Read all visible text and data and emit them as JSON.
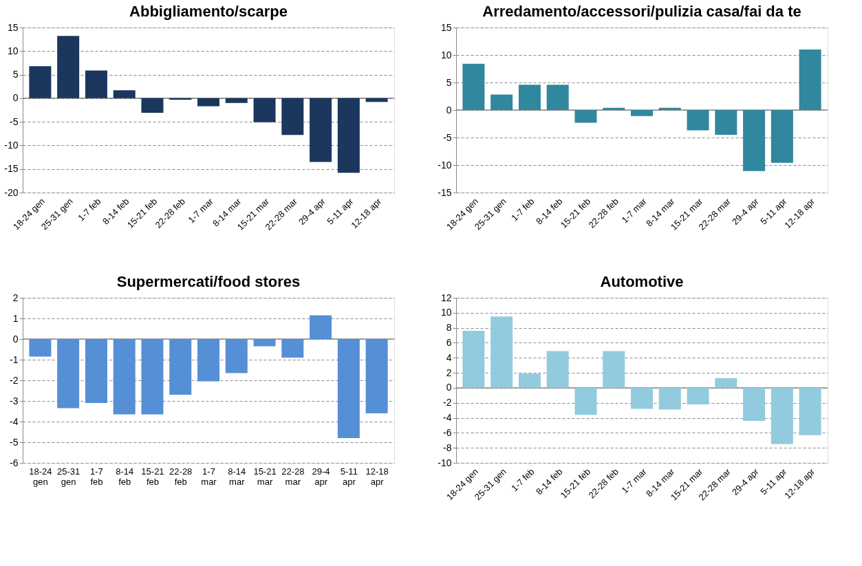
{
  "chart_data": [
    {
      "type": "bar",
      "title": "Abbigliamento/scarpe",
      "categories": [
        "18-24 gen",
        "25-31 gen",
        "1-7 feb",
        "8-14 feb",
        "15-21 feb",
        "22-28 feb",
        "1-7 mar",
        "8-14 mar",
        "15-21 mar",
        "22-28 mar",
        "29-4 apr",
        "5-11 apr",
        "12-18 apr"
      ],
      "values": [
        6.8,
        13.2,
        5.9,
        1.7,
        -3.1,
        -0.3,
        -1.7,
        -1.0,
        -5.1,
        -7.8,
        -13.5,
        -15.8,
        -0.8
      ],
      "color": "#1b375e",
      "ylim": [
        -20,
        15
      ],
      "yticks": [
        -20,
        -15,
        -10,
        -5,
        0,
        5,
        10,
        15
      ],
      "grid": "y"
    },
    {
      "type": "bar",
      "title": "Arredamento/accessori/pulizia casa/fai da te",
      "categories": [
        "18-24 gen",
        "25-31 gen",
        "1-7 feb",
        "8-14 feb",
        "15-21 feb",
        "22-28 feb",
        "1-7 mar",
        "8-14 mar",
        "15-21 mar",
        "22-28 mar",
        "29-4 apr",
        "5-11 apr",
        "12-18 apr"
      ],
      "values": [
        8.4,
        2.8,
        4.6,
        4.6,
        -2.3,
        0.4,
        -1.1,
        0.4,
        -3.7,
        -4.5,
        -11.1,
        -9.6,
        11.0
      ],
      "color": "#31879e",
      "ylim": [
        -15,
        15
      ],
      "yticks": [
        -15,
        -10,
        -5,
        0,
        5,
        10,
        15
      ],
      "grid": "y"
    },
    {
      "type": "bar",
      "title": "Supermercati/food stores",
      "categories": [
        "18-24 gen",
        "25-31 gen",
        "1-7 feb",
        "8-14 feb",
        "15-21 feb",
        "22-28 feb",
        "1-7 mar",
        "8-14 mar",
        "15-21 mar",
        "22-28 mar",
        "29-4 apr",
        "5-11 apr",
        "12-18 apr"
      ],
      "values": [
        -0.85,
        -3.35,
        -3.1,
        -3.65,
        -3.65,
        -2.7,
        -2.05,
        -1.65,
        -0.35,
        -0.9,
        1.15,
        -4.8,
        -3.6
      ],
      "color": "#558fd6",
      "ylim": [
        -6,
        2
      ],
      "yticks": [
        -6,
        -5,
        -4,
        -3,
        -2,
        -1,
        0,
        1,
        2
      ],
      "grid": "y"
    },
    {
      "type": "bar",
      "title": "Automotive",
      "categories": [
        "18-24 gen",
        "25-31 gen",
        "1-7 feb",
        "8-14 feb",
        "15-21 feb",
        "22-28 feb",
        "1-7 mar",
        "8-14 mar",
        "15-21 mar",
        "22-28 mar",
        "29-4 apr",
        "5-11 apr",
        "12-18 apr"
      ],
      "values": [
        7.6,
        9.5,
        1.9,
        4.9,
        -3.6,
        4.9,
        -2.8,
        -2.9,
        -2.2,
        1.3,
        -4.4,
        -7.5,
        -6.3
      ],
      "color": "#92cbdd",
      "ylim": [
        -10,
        12
      ],
      "yticks": [
        -10,
        -8,
        -6,
        -4,
        -2,
        0,
        2,
        4,
        6,
        8,
        10,
        12
      ],
      "grid": "y"
    }
  ]
}
